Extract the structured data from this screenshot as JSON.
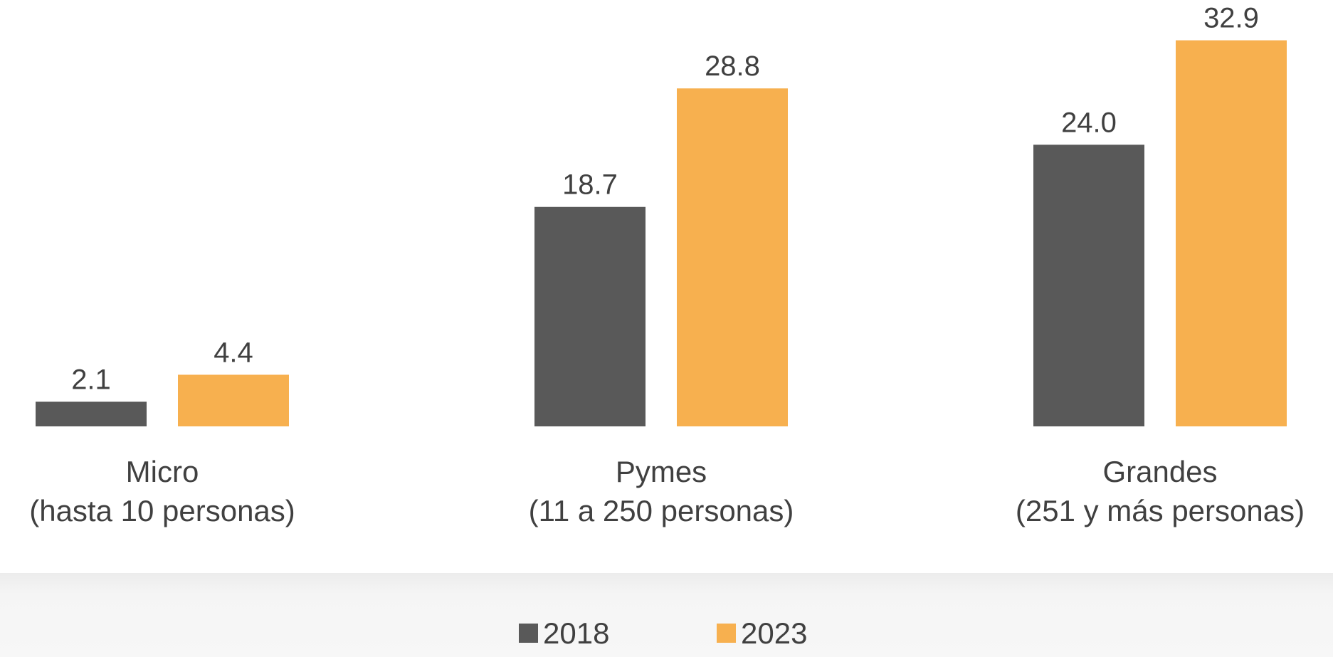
{
  "chart_data": {
    "type": "bar",
    "categories": [
      [
        "Micro",
        "(hasta 10 personas)"
      ],
      [
        "Pymes",
        "(11 a 250 personas)"
      ],
      [
        "Grandes",
        "(251 y más personas)"
      ]
    ],
    "series": [
      {
        "name": "2018",
        "color": "#595959",
        "values": [
          2.1,
          18.7,
          24.0
        ],
        "value_labels": [
          "2.1",
          "18.7",
          "24.0"
        ]
      },
      {
        "name": "2023",
        "color": "#f7b04f",
        "values": [
          4.4,
          28.8,
          32.9
        ],
        "value_labels": [
          "4.4",
          "28.8",
          "32.9"
        ]
      }
    ],
    "ylim": [
      0,
      35
    ],
    "legend": "bottom"
  }
}
